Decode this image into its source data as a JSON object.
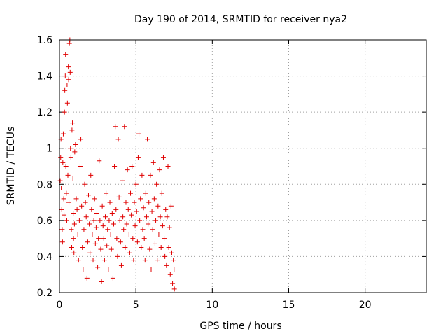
{
  "chart_data": {
    "type": "scatter",
    "title": "Day 190 of 2014, SRMTID for receiver nya2",
    "xlabel": "GPS time / hours",
    "ylabel": "SRMTID / TECUs",
    "xlim": [
      0,
      24
    ],
    "ylim": [
      0.2,
      1.6
    ],
    "x_ticks": [
      0,
      5,
      10,
      15,
      20
    ],
    "x_tick_labels": [
      "0",
      "5",
      "10",
      "15",
      "20"
    ],
    "y_ticks": [
      0.2,
      0.4,
      0.6,
      0.8,
      1.0,
      1.2,
      1.4,
      1.6
    ],
    "y_tick_labels": [
      "0.2",
      "0.4",
      "0.6",
      "0.8",
      "1",
      "1.2",
      "1.4",
      "1.6"
    ],
    "grid": true,
    "marker": "+",
    "marker_color": "#e00000",
    "series": [
      {
        "name": "SRMTID",
        "points": [
          [
            0.05,
            0.82
          ],
          [
            0.08,
            0.95
          ],
          [
            0.1,
            1.05
          ],
          [
            0.12,
            0.78
          ],
          [
            0.15,
            0.66
          ],
          [
            0.18,
            0.55
          ],
          [
            0.2,
            0.48
          ],
          [
            0.22,
            0.92
          ],
          [
            0.25,
            1.08
          ],
          [
            0.28,
            0.72
          ],
          [
            0.3,
            0.63
          ],
          [
            0.33,
            1.2
          ],
          [
            0.35,
            1.32
          ],
          [
            0.38,
            1.4
          ],
          [
            0.4,
            1.52
          ],
          [
            0.42,
            0.9
          ],
          [
            0.45,
            0.75
          ],
          [
            0.48,
            0.6
          ],
          [
            0.5,
            1.35
          ],
          [
            0.52,
            1.25
          ],
          [
            0.55,
            0.85
          ],
          [
            0.58,
            1.45
          ],
          [
            0.6,
            1.38
          ],
          [
            0.62,
            0.7
          ],
          [
            0.65,
            1.58
          ],
          [
            0.68,
            1.6
          ],
          [
            0.7,
            1.42
          ],
          [
            0.72,
            1.0
          ],
          [
            0.75,
            0.95
          ],
          [
            0.78,
            0.55
          ],
          [
            0.8,
            0.45
          ],
          [
            0.82,
            1.1
          ],
          [
            0.85,
            1.14
          ],
          [
            0.88,
            0.83
          ],
          [
            0.9,
            0.64
          ],
          [
            0.92,
            0.5
          ],
          [
            0.95,
            0.42
          ],
          [
            0.98,
            0.58
          ],
          [
            1.0,
            0.98
          ],
          [
            1.05,
            1.02
          ],
          [
            1.1,
            0.72
          ],
          [
            1.15,
            0.66
          ],
          [
            1.2,
            0.52
          ],
          [
            1.25,
            0.38
          ],
          [
            1.3,
            0.6
          ],
          [
            1.35,
            0.9
          ],
          [
            1.4,
            1.05
          ],
          [
            1.45,
            0.68
          ],
          [
            1.5,
            0.45
          ],
          [
            1.55,
            0.33
          ],
          [
            1.6,
            0.55
          ],
          [
            1.65,
            0.8
          ],
          [
            1.7,
            0.7
          ],
          [
            1.75,
            0.62
          ],
          [
            1.8,
            0.28
          ],
          [
            1.85,
            0.48
          ],
          [
            1.9,
            0.74
          ],
          [
            1.95,
            0.58
          ],
          [
            2.0,
            0.42
          ],
          [
            2.05,
            0.85
          ],
          [
            2.1,
            0.66
          ],
          [
            2.15,
            0.52
          ],
          [
            2.2,
            0.38
          ],
          [
            2.25,
            0.6
          ],
          [
            2.3,
            0.72
          ],
          [
            2.35,
            0.47
          ],
          [
            2.4,
            0.56
          ],
          [
            2.45,
            0.64
          ],
          [
            2.5,
            0.34
          ],
          [
            2.55,
            0.5
          ],
          [
            2.6,
            0.93
          ],
          [
            2.65,
            0.6
          ],
          [
            2.7,
            0.44
          ],
          [
            2.75,
            0.26
          ],
          [
            2.8,
            0.68
          ],
          [
            2.85,
            0.57
          ],
          [
            2.9,
            0.5
          ],
          [
            2.95,
            0.38
          ],
          [
            3.0,
            0.62
          ],
          [
            3.05,
            0.75
          ],
          [
            3.1,
            0.46
          ],
          [
            3.15,
            0.55
          ],
          [
            3.2,
            0.33
          ],
          [
            3.25,
            0.6
          ],
          [
            3.3,
            0.7
          ],
          [
            3.35,
            0.52
          ],
          [
            3.4,
            0.44
          ],
          [
            3.45,
            0.64
          ],
          [
            3.5,
            0.28
          ],
          [
            3.55,
            0.58
          ],
          [
            3.6,
            0.9
          ],
          [
            3.65,
            1.12
          ],
          [
            3.7,
            0.66
          ],
          [
            3.75,
            0.5
          ],
          [
            3.8,
            0.4
          ],
          [
            3.85,
            1.05
          ],
          [
            3.9,
            0.73
          ],
          [
            3.95,
            0.6
          ],
          [
            4.0,
            0.48
          ],
          [
            4.05,
            0.35
          ],
          [
            4.1,
            0.82
          ],
          [
            4.15,
            0.62
          ],
          [
            4.2,
            0.55
          ],
          [
            4.25,
            1.12
          ],
          [
            4.3,
            0.45
          ],
          [
            4.35,
            0.7
          ],
          [
            4.4,
            0.58
          ],
          [
            4.45,
            0.88
          ],
          [
            4.5,
            0.66
          ],
          [
            4.55,
            0.52
          ],
          [
            4.6,
            0.42
          ],
          [
            4.65,
            0.75
          ],
          [
            4.7,
            0.63
          ],
          [
            4.75,
            0.9
          ],
          [
            4.8,
            0.5
          ],
          [
            4.85,
            0.38
          ],
          [
            4.9,
            0.7
          ],
          [
            4.95,
            0.57
          ],
          [
            5.0,
            0.8
          ],
          [
            5.05,
            0.65
          ],
          [
            5.1,
            0.48
          ],
          [
            5.15,
            0.95
          ],
          [
            5.2,
            1.08
          ],
          [
            5.25,
            0.6
          ],
          [
            5.3,
            0.72
          ],
          [
            5.35,
            0.45
          ],
          [
            5.4,
            0.85
          ],
          [
            5.45,
            0.55
          ],
          [
            5.5,
            0.67
          ],
          [
            5.55,
            0.5
          ],
          [
            5.6,
            0.38
          ],
          [
            5.65,
            0.75
          ],
          [
            5.7,
            0.62
          ],
          [
            5.75,
            1.05
          ],
          [
            5.8,
            0.58
          ],
          [
            5.85,
            0.7
          ],
          [
            5.9,
            0.44
          ],
          [
            5.95,
            0.85
          ],
          [
            6.0,
            0.33
          ],
          [
            6.05,
            0.65
          ],
          [
            6.1,
            0.55
          ],
          [
            6.15,
            0.92
          ],
          [
            6.2,
            0.72
          ],
          [
            6.25,
            0.47
          ],
          [
            6.3,
            0.6
          ],
          [
            6.35,
            0.8
          ],
          [
            6.4,
            0.38
          ],
          [
            6.45,
            0.68
          ],
          [
            6.5,
            0.52
          ],
          [
            6.55,
            0.88
          ],
          [
            6.6,
            0.62
          ],
          [
            6.65,
            0.45
          ],
          [
            6.7,
            0.75
          ],
          [
            6.75,
            0.57
          ],
          [
            6.8,
            0.95
          ],
          [
            6.85,
            0.5
          ],
          [
            6.9,
            0.4
          ],
          [
            6.95,
            0.66
          ],
          [
            7.0,
            0.35
          ],
          [
            7.05,
            0.62
          ],
          [
            7.1,
            0.9
          ],
          [
            7.15,
            0.45
          ],
          [
            7.2,
            0.56
          ],
          [
            7.25,
            0.3
          ],
          [
            7.3,
            0.68
          ],
          [
            7.35,
            0.42
          ],
          [
            7.4,
            0.25
          ],
          [
            7.45,
            0.38
          ],
          [
            7.5,
            0.33
          ],
          [
            7.52,
            0.22
          ]
        ]
      }
    ]
  }
}
